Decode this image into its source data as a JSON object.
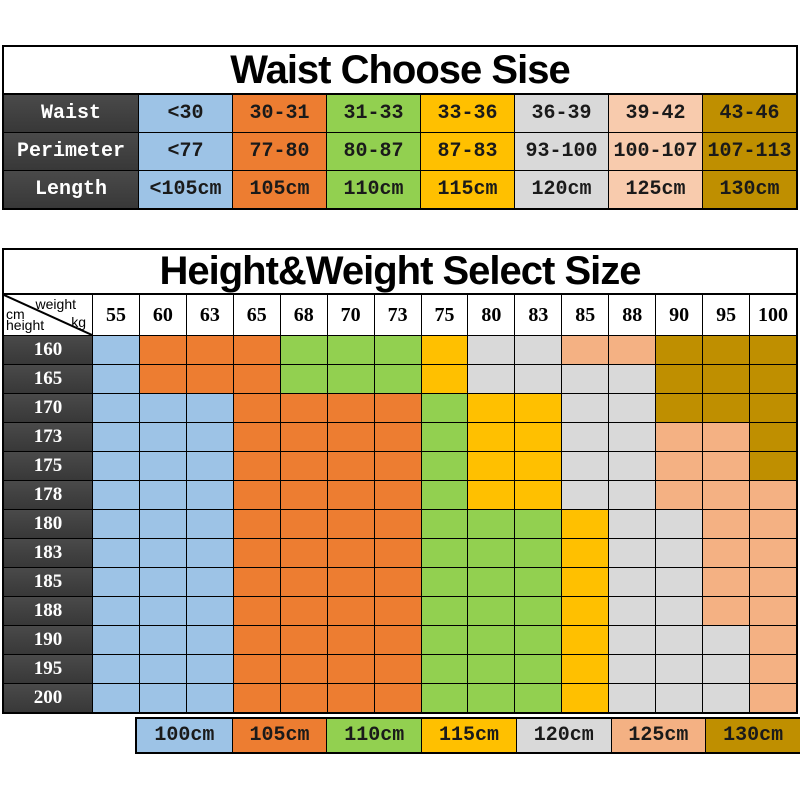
{
  "colors": {
    "blue": "#9DC3E6",
    "orange": "#ED7D31",
    "green": "#92D050",
    "yellow": "#FFC000",
    "gray": "#D9D9D9",
    "peach": "#F4B183",
    "peach_light": "#F8CBAD",
    "olive": "#BF8F00",
    "header_dark": "#3F3F3F",
    "border": "#000000",
    "background": "#FFFFFF"
  },
  "waist_table": {
    "title": "Waist Choose Sise",
    "column_colors": [
      "blue",
      "orange",
      "green",
      "yellow",
      "gray",
      "peach_light",
      "olive"
    ],
    "rows": [
      {
        "label": "Waist",
        "values": [
          "<30",
          "30-31",
          "31-33",
          "33-36",
          "36-39",
          "39-42",
          "43-46"
        ]
      },
      {
        "label": "Perimeter",
        "values": [
          "<77",
          "77-80",
          "80-87",
          "87-83",
          "93-100",
          "100-107",
          "107-113"
        ]
      },
      {
        "label": "Length",
        "values": [
          "<105cm",
          "105cm",
          "110cm",
          "115cm",
          "120cm",
          "125cm",
          "130cm"
        ]
      }
    ]
  },
  "size_table": {
    "title": "Height&Weight Select Size",
    "corner": {
      "weight_label": "weight",
      "weight_unit": "kg",
      "height_unit": "cm",
      "height_label": "height"
    },
    "weights": [
      "55",
      "60",
      "63",
      "65",
      "68",
      "70",
      "73",
      "75",
      "80",
      "83",
      "85",
      "88",
      "90",
      "95",
      "100"
    ],
    "heights": [
      "160",
      "165",
      "170",
      "173",
      "175",
      "178",
      "180",
      "183",
      "185",
      "188",
      "190",
      "195",
      "200"
    ],
    "size_color_map": {
      "100cm": "blue",
      "105cm": "orange",
      "110cm": "green",
      "115cm": "yellow",
      "120cm": "gray",
      "125cm": "peach",
      "130cm": "olive"
    },
    "cells": [
      [
        "100cm",
        "105cm",
        "105cm",
        "105cm",
        "110cm",
        "110cm",
        "110cm",
        "115cm",
        "120cm",
        "120cm",
        "125cm",
        "125cm",
        "130cm",
        "130cm",
        "130cm"
      ],
      [
        "100cm",
        "105cm",
        "105cm",
        "105cm",
        "110cm",
        "110cm",
        "110cm",
        "115cm",
        "120cm",
        "120cm",
        "120cm",
        "120cm",
        "130cm",
        "130cm",
        "130cm"
      ],
      [
        "100cm",
        "100cm",
        "100cm",
        "105cm",
        "105cm",
        "105cm",
        "105cm",
        "110cm",
        "115cm",
        "115cm",
        "120cm",
        "120cm",
        "130cm",
        "130cm",
        "130cm"
      ],
      [
        "100cm",
        "100cm",
        "100cm",
        "105cm",
        "105cm",
        "105cm",
        "105cm",
        "110cm",
        "115cm",
        "115cm",
        "120cm",
        "120cm",
        "125cm",
        "125cm",
        "130cm"
      ],
      [
        "100cm",
        "100cm",
        "100cm",
        "105cm",
        "105cm",
        "105cm",
        "105cm",
        "110cm",
        "115cm",
        "115cm",
        "120cm",
        "120cm",
        "125cm",
        "125cm",
        "130cm"
      ],
      [
        "100cm",
        "100cm",
        "100cm",
        "105cm",
        "105cm",
        "105cm",
        "105cm",
        "110cm",
        "115cm",
        "115cm",
        "120cm",
        "120cm",
        "125cm",
        "125cm",
        "125cm"
      ],
      [
        "100cm",
        "100cm",
        "100cm",
        "105cm",
        "105cm",
        "105cm",
        "105cm",
        "110cm",
        "110cm",
        "110cm",
        "115cm",
        "120cm",
        "120cm",
        "125cm",
        "125cm"
      ],
      [
        "100cm",
        "100cm",
        "100cm",
        "105cm",
        "105cm",
        "105cm",
        "105cm",
        "110cm",
        "110cm",
        "110cm",
        "115cm",
        "120cm",
        "120cm",
        "125cm",
        "125cm"
      ],
      [
        "100cm",
        "100cm",
        "100cm",
        "105cm",
        "105cm",
        "105cm",
        "105cm",
        "110cm",
        "110cm",
        "110cm",
        "115cm",
        "120cm",
        "120cm",
        "125cm",
        "125cm"
      ],
      [
        "100cm",
        "100cm",
        "100cm",
        "105cm",
        "105cm",
        "105cm",
        "105cm",
        "110cm",
        "110cm",
        "110cm",
        "115cm",
        "120cm",
        "120cm",
        "125cm",
        "125cm"
      ],
      [
        "100cm",
        "100cm",
        "100cm",
        "105cm",
        "105cm",
        "105cm",
        "105cm",
        "110cm",
        "110cm",
        "110cm",
        "115cm",
        "120cm",
        "120cm",
        "120cm",
        "125cm"
      ],
      [
        "100cm",
        "100cm",
        "100cm",
        "105cm",
        "105cm",
        "105cm",
        "105cm",
        "110cm",
        "110cm",
        "110cm",
        "115cm",
        "120cm",
        "120cm",
        "120cm",
        "125cm"
      ],
      [
        "100cm",
        "100cm",
        "100cm",
        "105cm",
        "105cm",
        "105cm",
        "105cm",
        "110cm",
        "110cm",
        "110cm",
        "115cm",
        "120cm",
        "120cm",
        "120cm",
        "125cm"
      ]
    ]
  },
  "legend": {
    "items": [
      {
        "label": "100cm",
        "color": "blue"
      },
      {
        "label": "105cm",
        "color": "orange"
      },
      {
        "label": "110cm",
        "color": "green"
      },
      {
        "label": "115cm",
        "color": "yellow"
      },
      {
        "label": "120cm",
        "color": "gray"
      },
      {
        "label": "125cm",
        "color": "peach"
      },
      {
        "label": "130cm",
        "color": "olive"
      }
    ]
  },
  "chart_data": [
    {
      "type": "table",
      "title": "Waist Choose Sise",
      "rows": [
        [
          "Waist",
          "<30",
          "30-31",
          "31-33",
          "33-36",
          "36-39",
          "39-42",
          "43-46"
        ],
        [
          "Perimeter",
          "<77",
          "77-80",
          "80-87",
          "87-83",
          "93-100",
          "100-107",
          "107-113"
        ],
        [
          "Length",
          "<105cm",
          "105cm",
          "110cm",
          "115cm",
          "120cm",
          "125cm",
          "130cm"
        ]
      ],
      "column_colors": [
        "#9DC3E6",
        "#ED7D31",
        "#92D050",
        "#FFC000",
        "#D9D9D9",
        "#F8CBAD",
        "#BF8F00"
      ]
    },
    {
      "type": "heatmap",
      "title": "Height&Weight Select Size",
      "xlabel": "weight kg",
      "ylabel": "height cm",
      "x": [
        55,
        60,
        63,
        65,
        68,
        70,
        73,
        75,
        80,
        83,
        85,
        88,
        90,
        95,
        100
      ],
      "y": [
        160,
        165,
        170,
        173,
        175,
        178,
        180,
        183,
        185,
        188,
        190,
        195,
        200
      ],
      "values": [
        [
          "100cm",
          "105cm",
          "105cm",
          "105cm",
          "110cm",
          "110cm",
          "110cm",
          "115cm",
          "120cm",
          "120cm",
          "125cm",
          "125cm",
          "130cm",
          "130cm",
          "130cm"
        ],
        [
          "100cm",
          "105cm",
          "105cm",
          "105cm",
          "110cm",
          "110cm",
          "110cm",
          "115cm",
          "120cm",
          "120cm",
          "120cm",
          "120cm",
          "130cm",
          "130cm",
          "130cm"
        ],
        [
          "100cm",
          "100cm",
          "100cm",
          "105cm",
          "105cm",
          "105cm",
          "105cm",
          "110cm",
          "115cm",
          "115cm",
          "120cm",
          "120cm",
          "130cm",
          "130cm",
          "130cm"
        ],
        [
          "100cm",
          "100cm",
          "100cm",
          "105cm",
          "105cm",
          "105cm",
          "105cm",
          "110cm",
          "115cm",
          "115cm",
          "120cm",
          "120cm",
          "125cm",
          "125cm",
          "130cm"
        ],
        [
          "100cm",
          "100cm",
          "100cm",
          "105cm",
          "105cm",
          "105cm",
          "105cm",
          "110cm",
          "115cm",
          "115cm",
          "120cm",
          "120cm",
          "125cm",
          "125cm",
          "130cm"
        ],
        [
          "100cm",
          "100cm",
          "100cm",
          "105cm",
          "105cm",
          "105cm",
          "105cm",
          "110cm",
          "115cm",
          "115cm",
          "120cm",
          "120cm",
          "125cm",
          "125cm",
          "125cm"
        ],
        [
          "100cm",
          "100cm",
          "100cm",
          "105cm",
          "105cm",
          "105cm",
          "105cm",
          "110cm",
          "110cm",
          "110cm",
          "115cm",
          "120cm",
          "120cm",
          "125cm",
          "125cm"
        ],
        [
          "100cm",
          "100cm",
          "100cm",
          "105cm",
          "105cm",
          "105cm",
          "105cm",
          "110cm",
          "110cm",
          "110cm",
          "115cm",
          "120cm",
          "120cm",
          "125cm",
          "125cm"
        ],
        [
          "100cm",
          "100cm",
          "100cm",
          "105cm",
          "105cm",
          "105cm",
          "105cm",
          "110cm",
          "110cm",
          "110cm",
          "115cm",
          "120cm",
          "120cm",
          "125cm",
          "125cm"
        ],
        [
          "100cm",
          "100cm",
          "100cm",
          "105cm",
          "105cm",
          "105cm",
          "105cm",
          "110cm",
          "110cm",
          "110cm",
          "115cm",
          "120cm",
          "120cm",
          "125cm",
          "125cm"
        ],
        [
          "100cm",
          "100cm",
          "100cm",
          "105cm",
          "105cm",
          "105cm",
          "105cm",
          "110cm",
          "110cm",
          "110cm",
          "115cm",
          "120cm",
          "120cm",
          "120cm",
          "125cm"
        ],
        [
          "100cm",
          "100cm",
          "100cm",
          "105cm",
          "105cm",
          "105cm",
          "105cm",
          "110cm",
          "110cm",
          "110cm",
          "115cm",
          "120cm",
          "120cm",
          "120cm",
          "125cm"
        ],
        [
          "100cm",
          "100cm",
          "100cm",
          "105cm",
          "105cm",
          "105cm",
          "105cm",
          "110cm",
          "110cm",
          "110cm",
          "115cm",
          "120cm",
          "120cm",
          "120cm",
          "125cm"
        ]
      ],
      "legend": [
        "100cm",
        "105cm",
        "110cm",
        "115cm",
        "120cm",
        "125cm",
        "130cm"
      ],
      "legend_position": "bottom"
    }
  ]
}
